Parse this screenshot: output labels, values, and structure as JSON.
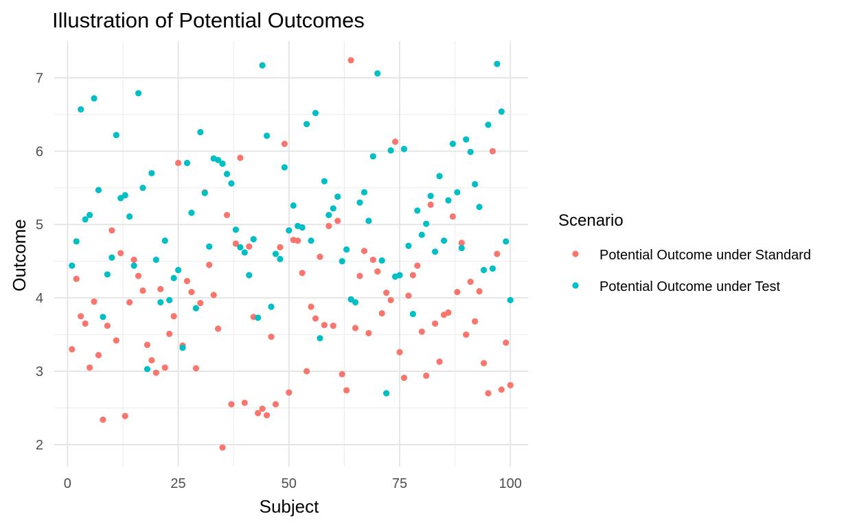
{
  "chart_data": {
    "type": "scatter",
    "title": "Illustration of Potential Outcomes",
    "xlabel": "Subject",
    "ylabel": "Outcome",
    "xlim": [
      -3,
      104
    ],
    "ylim": [
      1.7,
      7.5
    ],
    "x_ticks": [
      0,
      25,
      50,
      75,
      100
    ],
    "y_ticks": [
      2,
      3,
      4,
      5,
      6,
      7
    ],
    "grid": true,
    "legend": {
      "title": "Scenario",
      "position": "right"
    },
    "x": [
      1,
      2,
      3,
      4,
      5,
      6,
      7,
      8,
      9,
      10,
      11,
      12,
      13,
      14,
      15,
      16,
      17,
      18,
      19,
      20,
      21,
      22,
      23,
      24,
      25,
      26,
      27,
      28,
      29,
      30,
      31,
      32,
      33,
      34,
      35,
      36,
      37,
      38,
      39,
      40,
      41,
      42,
      43,
      44,
      45,
      46,
      47,
      48,
      49,
      50,
      51,
      52,
      53,
      54,
      55,
      56,
      57,
      58,
      59,
      60,
      61,
      62,
      63,
      64,
      65,
      66,
      67,
      68,
      69,
      70,
      71,
      72,
      73,
      74,
      75,
      76,
      77,
      78,
      79,
      80,
      81,
      82,
      83,
      84,
      85,
      86,
      87,
      88,
      89,
      90,
      91,
      92,
      93,
      94,
      95,
      96,
      97,
      98,
      99,
      100
    ],
    "series": [
      {
        "name": "Potential Outcome under Standard",
        "color": "#F8766D",
        "values": [
          3.3,
          4.26,
          3.75,
          3.65,
          3.05,
          3.95,
          3.22,
          2.34,
          3.62,
          4.92,
          3.42,
          4.61,
          2.39,
          3.94,
          4.52,
          4.3,
          4.1,
          3.36,
          3.15,
          2.98,
          4.12,
          3.05,
          3.51,
          3.75,
          5.84,
          3.35,
          4.23,
          4.08,
          3.04,
          3.93,
          5.44,
          4.45,
          4.04,
          3.58,
          1.96,
          5.13,
          2.55,
          4.74,
          5.91,
          2.57,
          4.7,
          3.74,
          2.43,
          2.49,
          2.4,
          3.47,
          2.55,
          4.69,
          6.1,
          2.71,
          4.79,
          4.78,
          4.34,
          3.0,
          3.88,
          3.72,
          4.56,
          3.63,
          4.98,
          3.62,
          5.05,
          2.96,
          2.74,
          7.24,
          3.59,
          4.3,
          4.64,
          3.52,
          4.52,
          4.36,
          3.79,
          4.07,
          3.97,
          6.13,
          3.26,
          2.91,
          4.03,
          4.31,
          4.44,
          3.54,
          2.94,
          5.27,
          3.65,
          3.13,
          3.77,
          3.8,
          5.11,
          4.08,
          4.75,
          3.5,
          4.22,
          3.68,
          4.09,
          3.11,
          2.7,
          6.0,
          4.6,
          2.75,
          3.39,
          2.81
        ]
      },
      {
        "name": "Potential Outcome under Test",
        "color": "#00BFC4",
        "values": [
          4.44,
          4.77,
          6.57,
          5.07,
          5.13,
          6.72,
          5.47,
          3.74,
          4.32,
          4.55,
          6.22,
          5.36,
          5.4,
          5.11,
          4.44,
          6.79,
          5.5,
          3.03,
          5.7,
          4.52,
          3.94,
          4.78,
          3.97,
          4.27,
          4.38,
          3.32,
          5.84,
          5.16,
          3.86,
          6.26,
          5.43,
          4.7,
          5.9,
          5.88,
          5.83,
          5.69,
          5.56,
          4.93,
          4.69,
          4.62,
          4.31,
          4.8,
          3.73,
          7.17,
          6.21,
          3.88,
          4.6,
          4.53,
          5.78,
          4.92,
          5.26,
          4.98,
          4.96,
          6.37,
          4.78,
          6.52,
          3.45,
          5.59,
          5.13,
          5.22,
          5.38,
          4.5,
          4.66,
          3.98,
          3.94,
          5.3,
          5.44,
          5.05,
          5.93,
          7.06,
          4.51,
          2.7,
          6.01,
          4.29,
          4.31,
          6.03,
          4.71,
          3.78,
          5.19,
          4.86,
          5.01,
          5.39,
          4.63,
          5.66,
          4.78,
          5.33,
          6.1,
          5.44,
          4.68,
          6.16,
          5.99,
          5.55,
          5.24,
          4.38,
          6.36,
          4.4,
          7.19,
          6.54,
          4.77,
          3.97
        ]
      }
    ]
  }
}
